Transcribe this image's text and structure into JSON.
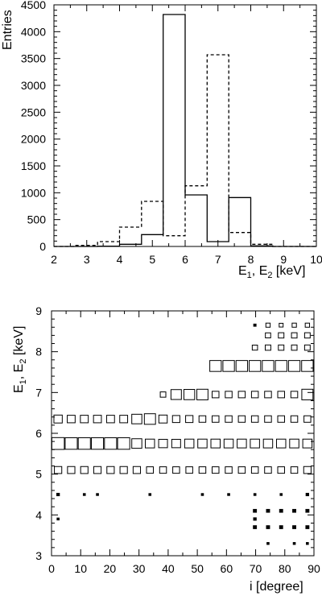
{
  "chart_data": [
    {
      "type": "histogram",
      "ylabel": "Entries",
      "xlabel": {
        "e": "E",
        "s1": "1",
        "sep": ", E",
        "s2": "2",
        "unit": " [keV]"
      },
      "xlim": [
        2,
        10
      ],
      "ylim": [
        0,
        4500
      ],
      "xticks": [
        2,
        3,
        4,
        5,
        6,
        7,
        8,
        9,
        10
      ],
      "yticks": [
        0,
        500,
        1000,
        1500,
        2000,
        2500,
        3000,
        3500,
        4000,
        4500
      ],
      "bin_edges": [
        2,
        2.67,
        3.33,
        4,
        4.67,
        5.33,
        6,
        6.67,
        7.33,
        8,
        8.67,
        9.33,
        10
      ],
      "series": [
        {
          "style": "solid",
          "values": [
            0,
            0,
            5,
            40,
            220,
            4320,
            960,
            90,
            910,
            10,
            0,
            0
          ]
        },
        {
          "style": "dashed",
          "values": [
            0,
            20,
            90,
            360,
            840,
            200,
            1130,
            3570,
            260,
            40,
            0,
            0
          ]
        }
      ]
    },
    {
      "type": "box_2d_histogram",
      "xlabel": "i [degree]",
      "ylabel": {
        "e": "E",
        "s1": "1",
        "sep": ", E",
        "s2": "2",
        "unit": " [keV]"
      },
      "xlim": [
        0,
        90
      ],
      "ylim": [
        3,
        9
      ],
      "xticks": [
        0,
        10,
        20,
        30,
        40,
        50,
        60,
        70,
        80,
        90
      ],
      "yticks": [
        3,
        4,
        5,
        6,
        7,
        8,
        9
      ],
      "x_bin_width": 4.5,
      "y_bin_width": 0.2,
      "bins": [
        {
          "y": 5.75,
          "weights": [
            1,
            0.95,
            0.95,
            0.95,
            0.95,
            0.95,
            0.65,
            0.55,
            0.5,
            0.5,
            0.55,
            0.55,
            0.55,
            0.55,
            0.55,
            0.55,
            0.55,
            0.55,
            0.55,
            0.55
          ]
        },
        {
          "y": 6.35,
          "weights": [
            0.45,
            0.4,
            0.4,
            0.4,
            0.4,
            0.4,
            0.65,
            0.8,
            0.45,
            0.35,
            0.35,
            0.3,
            0.3,
            0.3,
            0.3,
            0.3,
            0.3,
            0.3,
            0.3,
            0.3
          ]
        },
        {
          "y": 5.1,
          "weights": [
            0.35,
            0.35,
            0.35,
            0.35,
            0.35,
            0.35,
            0.35,
            0.3,
            0.3,
            0.3,
            0.3,
            0.3,
            0.3,
            0.3,
            0.3,
            0.3,
            0.3,
            0.3,
            0.3,
            0.35
          ]
        },
        {
          "y": 6.95,
          "weights": [
            0,
            0,
            0,
            0,
            0,
            0,
            0,
            0,
            0.2,
            0.7,
            0.75,
            0.8,
            0.3,
            0.3,
            0.3,
            0.3,
            0.3,
            0.3,
            0.3,
            0.8
          ]
        },
        {
          "y": 7.65,
          "weights": [
            0,
            0,
            0,
            0,
            0,
            0,
            0,
            0,
            0,
            0,
            0,
            0,
            0.85,
            0.85,
            0.85,
            0.85,
            0.85,
            0.85,
            0.85,
            0.85
          ]
        },
        {
          "y": 8.1,
          "weights": [
            0,
            0,
            0,
            0,
            0,
            0,
            0,
            0,
            0,
            0,
            0,
            0,
            0,
            0,
            0,
            0.18,
            0.2,
            0.2,
            0.2,
            0.2
          ]
        },
        {
          "y": 8.4,
          "weights": [
            0,
            0,
            0,
            0,
            0,
            0,
            0,
            0,
            0,
            0,
            0,
            0,
            0,
            0,
            0,
            0,
            0.18,
            0.2,
            0.2,
            0.2
          ]
        },
        {
          "y": 8.65,
          "weights": [
            0,
            0,
            0,
            0,
            0,
            0,
            0,
            0,
            0,
            0,
            0,
            0,
            0,
            0,
            0,
            0.05,
            0.12,
            0.1,
            0.12,
            0.12
          ]
        },
        {
          "y": 4.5,
          "weights": [
            0.06,
            0,
            0.04,
            0.04,
            0,
            0,
            0,
            0.04,
            0,
            0,
            0,
            0.04,
            0,
            0.04,
            0,
            0.04,
            0,
            0.04,
            0,
            0.06
          ]
        },
        {
          "y": 4.1,
          "weights": [
            0,
            0,
            0,
            0,
            0,
            0,
            0,
            0,
            0,
            0,
            0,
            0,
            0,
            0,
            0,
            0.08,
            0.08,
            0.08,
            0.08,
            0.08
          ]
        },
        {
          "y": 3.7,
          "weights": [
            0,
            0,
            0,
            0,
            0,
            0,
            0,
            0,
            0,
            0,
            0,
            0,
            0,
            0,
            0,
            0.08,
            0.08,
            0.08,
            0.08,
            0.08
          ]
        },
        {
          "y": 3.9,
          "weights": [
            0.04,
            0,
            0,
            0,
            0,
            0,
            0,
            0,
            0,
            0,
            0,
            0,
            0,
            0,
            0,
            0.06,
            0,
            0,
            0,
            0
          ]
        },
        {
          "y": 3.3,
          "weights": [
            0,
            0,
            0,
            0,
            0,
            0,
            0,
            0,
            0,
            0,
            0,
            0,
            0,
            0,
            0,
            0,
            0.04,
            0,
            0.04,
            0.04
          ]
        }
      ]
    }
  ]
}
